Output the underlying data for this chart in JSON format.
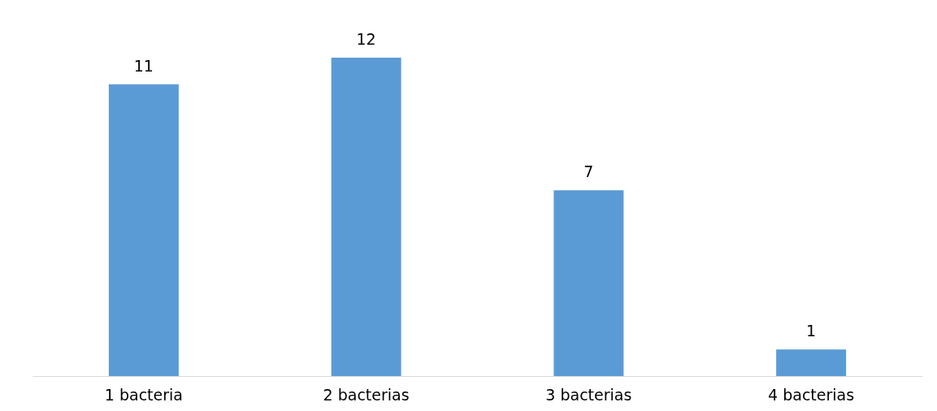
{
  "chart_data": {
    "type": "bar",
    "categories": [
      "1 bacteria",
      "2 bacterias",
      "3 bacterias",
      "4 bacterias"
    ],
    "values": [
      11,
      12,
      7,
      1
    ],
    "color": "#5b9bd5",
    "data_labels": true
  }
}
